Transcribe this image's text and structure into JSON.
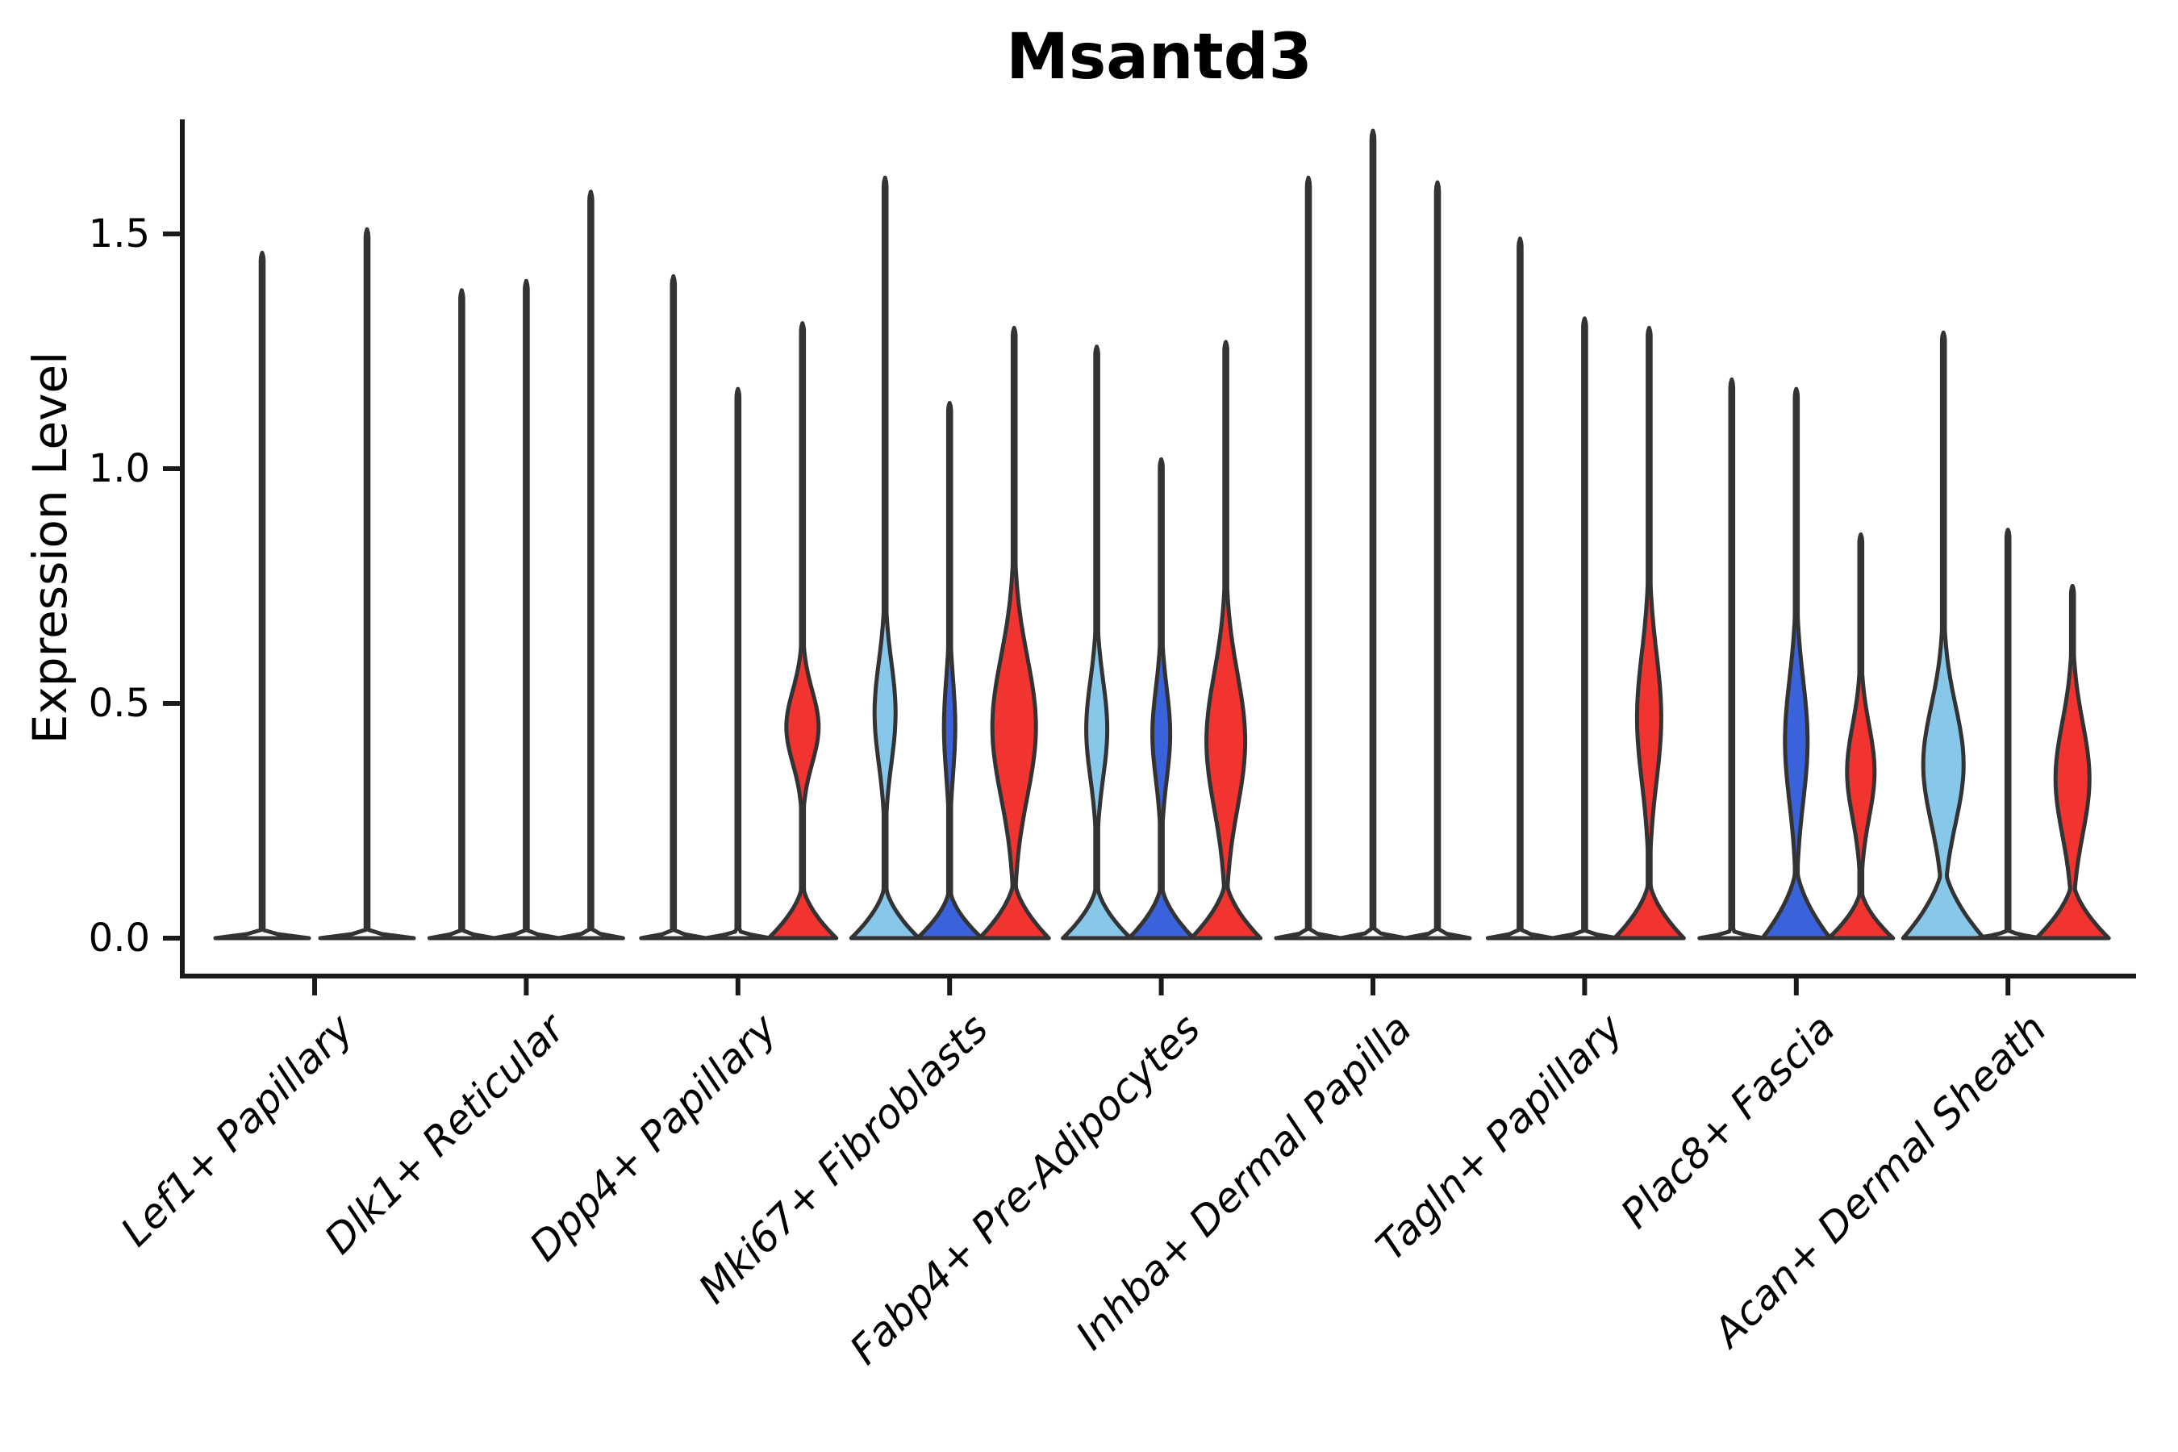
{
  "title": "Msantd3",
  "y_axis": {
    "label": "Expression Level",
    "ticks": [
      "0.0",
      "0.5",
      "1.0",
      "1.5"
    ]
  },
  "palette": {
    "red": "#F23430",
    "light_blue": "#86C7EA",
    "dark_blue": "#3A63DB",
    "plain": "#FFFFFF",
    "outline": "#333333",
    "axis": "#1a1a1a",
    "text": "#000000"
  },
  "chart_data": {
    "type": "violin",
    "title": "Msantd3",
    "ylabel": "Expression Level",
    "ylim": [
      -0.08,
      1.76
    ],
    "yticks": [
      0.0,
      0.5,
      1.0,
      1.5
    ],
    "grid": false,
    "legend": null,
    "categories": [
      "Lef1+ Papillary",
      "Dlk1+ Reticular",
      "Dpp4+ Papillary",
      "Mki67+ Fibroblasts",
      "Fabp4+ Pre-Adipocytes",
      "Inhba+ Dermal Papilla",
      "Tagln+ Papillary",
      "Plac8+ Fascia",
      "Acan+ Dermal Sheath"
    ],
    "groups": [
      {
        "category": "Lef1+ Papillary",
        "violins": [
          {
            "color": "plain",
            "max": 1.46
          },
          {
            "color": "plain",
            "max": 1.51
          }
        ]
      },
      {
        "category": "Dlk1+ Reticular",
        "violins": [
          {
            "color": "plain",
            "max": 1.38
          },
          {
            "color": "plain",
            "max": 1.4
          },
          {
            "color": "plain",
            "max": 1.59
          }
        ]
      },
      {
        "category": "Dpp4+ Papillary",
        "violins": [
          {
            "color": "plain",
            "max": 1.41
          },
          {
            "color": "plain",
            "max": 1.17
          },
          {
            "color": "red",
            "max": 1.31,
            "body": {
              "base": [
                0.12,
                42
              ],
              "bulge": [
                0.32,
                0.58,
                20
              ]
            }
          }
        ]
      },
      {
        "category": "Mki67+ Fibroblasts",
        "violins": [
          {
            "color": "light_blue",
            "max": 1.62,
            "body": {
              "base": [
                0.12,
                42
              ],
              "bulge": [
                0.3,
                0.66,
                13
              ]
            }
          },
          {
            "color": "dark_blue",
            "max": 1.14,
            "body": {
              "base": [
                0.11,
                40
              ],
              "bulge": [
                0.28,
                0.62,
                7
              ]
            }
          },
          {
            "color": "red",
            "max": 1.3,
            "body": {
              "base": [
                0.13,
                43
              ],
              "bulge": [
                0.2,
                0.7,
                27
              ]
            }
          }
        ]
      },
      {
        "category": "Fabp4+ Pre-Adipocytes",
        "violins": [
          {
            "color": "light_blue",
            "max": 1.26,
            "body": {
              "base": [
                0.12,
                42
              ],
              "bulge": [
                0.27,
                0.62,
                13
              ]
            }
          },
          {
            "color": "dark_blue",
            "max": 1.02,
            "body": {
              "base": [
                0.12,
                40
              ],
              "bulge": [
                0.27,
                0.6,
                11
              ]
            }
          },
          {
            "color": "red",
            "max": 1.27,
            "body": {
              "base": [
                0.13,
                43
              ],
              "bulge": [
                0.18,
                0.66,
                24
              ]
            }
          }
        ]
      },
      {
        "category": "Inhba+ Dermal Papilla",
        "violins": [
          {
            "color": "plain",
            "max": 1.62
          },
          {
            "color": "plain",
            "max": 1.72
          },
          {
            "color": "plain",
            "max": 1.61
          }
        ]
      },
      {
        "category": "Tagln+ Papillary",
        "violins": [
          {
            "color": "plain",
            "max": 1.49
          },
          {
            "color": "plain",
            "max": 1.32
          },
          {
            "color": "red",
            "max": 1.3,
            "body": {
              "base": [
                0.13,
                43
              ],
              "bulge": [
                0.24,
                0.7,
                15
              ]
            }
          }
        ]
      },
      {
        "category": "Plac8+ Fascia",
        "violins": [
          {
            "color": "plain",
            "max": 1.19
          },
          {
            "color": "dark_blue",
            "max": 1.17,
            "body": {
              "base": [
                0.16,
                42
              ],
              "bulge": [
                0.2,
                0.64,
                14
              ]
            }
          },
          {
            "color": "red",
            "max": 0.86,
            "body": {
              "base": [
                0.11,
                40
              ],
              "bulge": [
                0.19,
                0.52,
                17
              ]
            }
          }
        ]
      },
      {
        "category": "Acan+ Dermal Sheath",
        "violins": [
          {
            "color": "light_blue",
            "max": 1.29,
            "body": {
              "base": [
                0.17,
                50
              ],
              "bulge": [
                0.16,
                0.58,
                25
              ]
            }
          },
          {
            "color": "plain",
            "max": 0.87
          },
          {
            "color": "red",
            "max": 0.75,
            "body": {
              "base": [
                0.13,
                45
              ],
              "bulge": [
                0.14,
                0.54,
                21
              ]
            }
          }
        ]
      }
    ]
  }
}
